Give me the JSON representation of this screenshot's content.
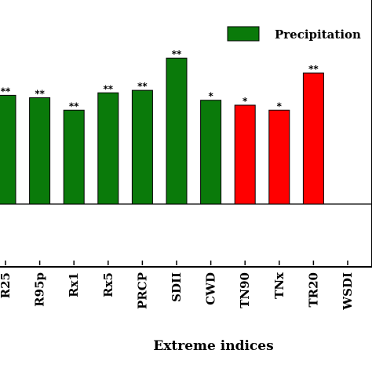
{
  "chart_data": {
    "type": "bar",
    "xlabel": "Extreme indices",
    "categories": [
      "R25",
      "R95p",
      "Rx1",
      "Rx5",
      "PRCP",
      "SDII",
      "CWD",
      "TN90",
      "TNx",
      "TR20",
      "WSDI"
    ],
    "values": [
      0.44,
      0.43,
      0.38,
      0.45,
      0.46,
      0.59,
      0.42,
      0.4,
      0.38,
      0.53,
      0.0
    ],
    "significance": [
      "**",
      "**",
      "**",
      "**",
      "**",
      "**",
      "*",
      "*",
      "*",
      "**",
      ""
    ],
    "bar_colors": [
      "#0a7a0a",
      "#0a7a0a",
      "#0a7a0a",
      "#0a7a0a",
      "#0a7a0a",
      "#0a7a0a",
      "#0a7a0a",
      "#ff0000",
      "#ff0000",
      "#ff0000",
      "#0a7a0a"
    ],
    "legend": [
      {
        "label": "Precipitation",
        "color": "#0a7a0a"
      }
    ],
    "legend_position": "top-right",
    "ylim": [
      -0.3,
      0.7
    ],
    "grid": false
  }
}
